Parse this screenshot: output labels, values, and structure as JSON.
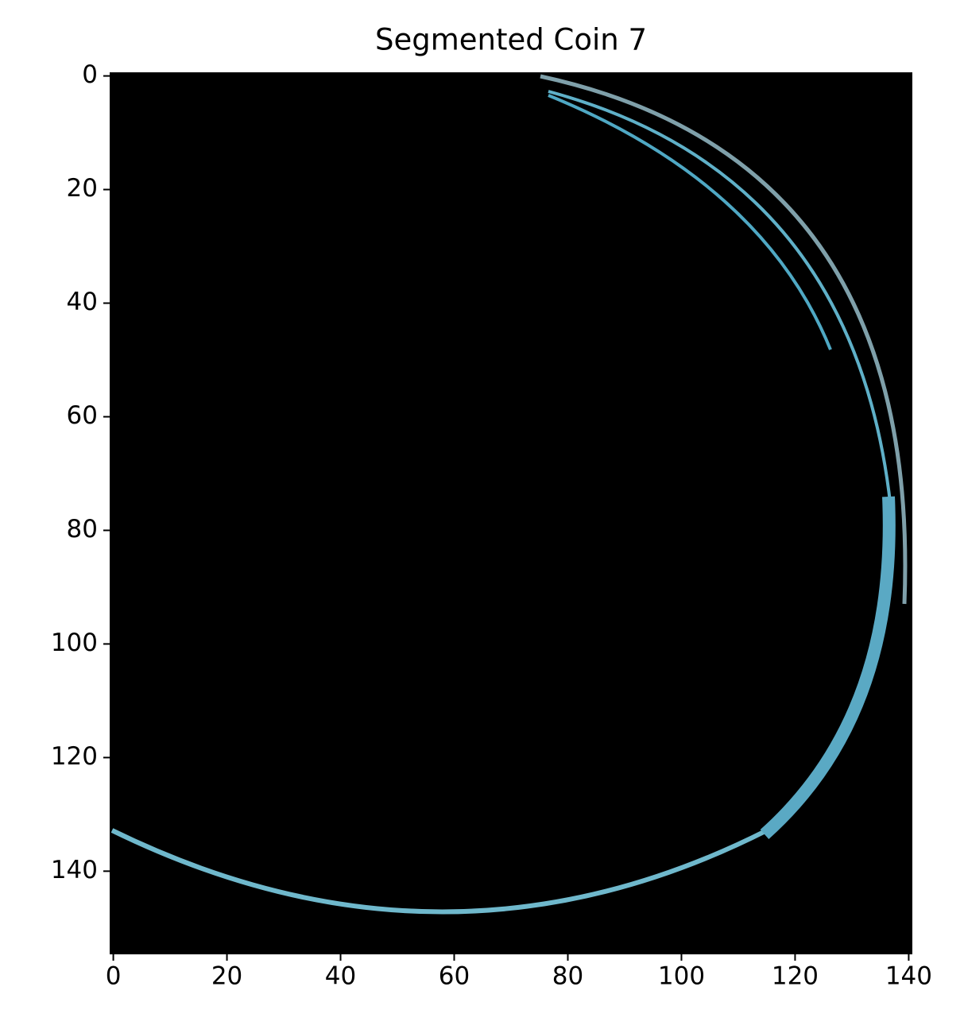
{
  "chart_data": {
    "type": "image",
    "title": "Segmented Coin 7",
    "xlim": [
      -0.5,
      140.5
    ],
    "ylim": [
      154.5,
      -0.5
    ],
    "xticks": [
      0,
      20,
      40,
      60,
      80,
      100,
      120,
      140
    ],
    "yticks": [
      0,
      20,
      40,
      60,
      80,
      100,
      120,
      140
    ]
  }
}
